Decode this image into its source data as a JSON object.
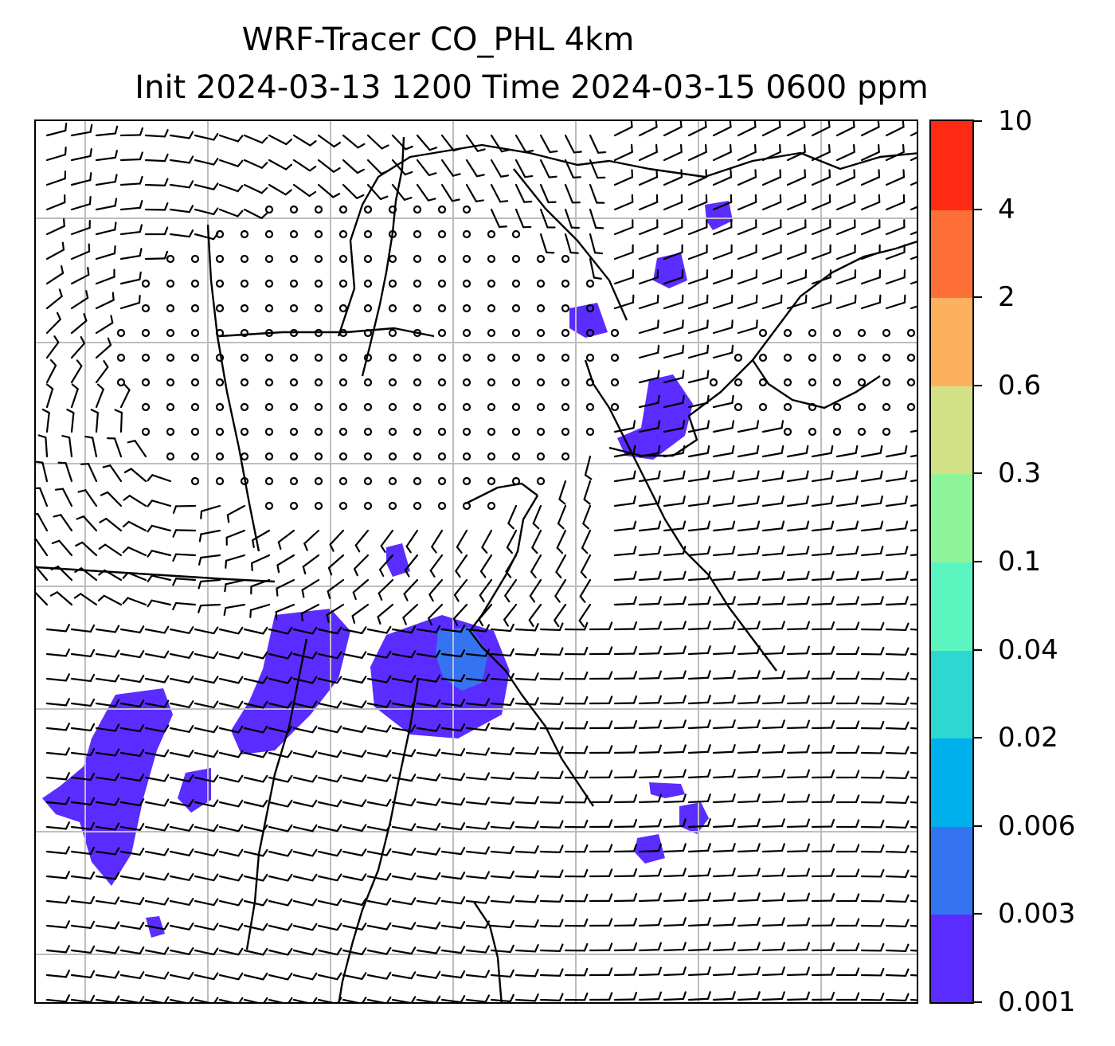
{
  "title": {
    "line1": "WRF-Tracer CO_PHL 4km",
    "line2": "Init 2024-03-13 1200 Time 2024-03-15 0600 ppm"
  },
  "map": {
    "field": "CO_PHL tracer concentration",
    "units": "ppm",
    "overlay": "wind barbs",
    "gridlines": true,
    "coastlines": true
  },
  "colorbar": {
    "levels": [
      "0.001",
      "0.003",
      "0.006",
      "0.02",
      "0.04",
      "0.1",
      "0.3",
      "0.6",
      "2",
      "4",
      "10"
    ],
    "colors": [
      "#5b2cff",
      "#3574f0",
      "#00b0ec",
      "#2dd8d2",
      "#5bf5c0",
      "#8ff59a",
      "#d3e186",
      "#fdb05e",
      "#ff7038",
      "#ff2a14"
    ]
  }
}
